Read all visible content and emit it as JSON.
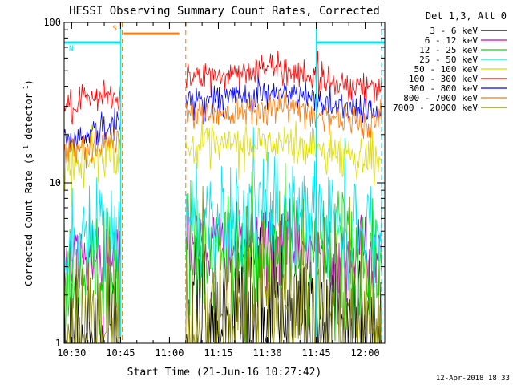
{
  "chart_data": {
    "type": "line",
    "title": "HESSI Observing Summary Count Rates, Corrected",
    "xlabel": "Start Time (21-Jun-16 10:27:42)",
    "ylabel_parts": [
      "Corrected Count Rate (s",
      "-1",
      " detector",
      "-1",
      ")"
    ],
    "y_scale": "log",
    "ylim": [
      1,
      100
    ],
    "xlim": [
      "10:27:42",
      "12:06:00"
    ],
    "x_tick_labels": [
      "10:30",
      "10:45",
      "11:00",
      "11:15",
      "11:30",
      "11:45",
      "12:00"
    ],
    "x_tick_minutes": [
      630,
      645,
      660,
      675,
      690,
      705,
      720
    ],
    "y_tick_labels": [
      "1",
      "10",
      "100"
    ],
    "y_tick_values": [
      1,
      10,
      100
    ],
    "legend_title": "Det 1,3, Att 0",
    "legend_position": "right",
    "data_gap": [
      "10:45",
      "11:05"
    ],
    "series": [
      {
        "name": "3 - 6 keV",
        "color": "#000000",
        "level_before": 1.0,
        "level_after": 1.4,
        "level_peak": 1.5,
        "noise": 0.35
      },
      {
        "name": "6 - 12 keV",
        "color": "#cc00cc",
        "level_before": 3.8,
        "level_after": 4.0,
        "level_peak": 4.2,
        "noise": 0.12
      },
      {
        "name": "12 - 25 keV",
        "color": "#00dd00",
        "level_before": 3.2,
        "level_after": 3.5,
        "level_peak": 3.7,
        "noise": 0.2
      },
      {
        "name": "25 - 50 keV",
        "color": "#00e5ee",
        "level_before": 5.2,
        "level_after": 6.0,
        "level_peak": 6.5,
        "noise": 0.18
      },
      {
        "name": "50 - 100 keV",
        "color": "#dddd00",
        "level_before": 16.0,
        "level_after": 16.5,
        "level_peak": 17.5,
        "noise": 0.07
      },
      {
        "name": "100 - 300 keV",
        "color": "#ff0000",
        "level_before": 36.0,
        "level_after": 45.0,
        "level_peak": 52.0,
        "noise": 0.05
      },
      {
        "name": "300 - 800 keV",
        "color": "#0000ff",
        "level_before": 23.0,
        "level_after": 33.0,
        "level_peak": 36.0,
        "noise": 0.05
      },
      {
        "name": "800 - 7000 keV",
        "color": "#ff7700",
        "level_before": 19.0,
        "level_after": 27.0,
        "level_peak": 30.0,
        "noise": 0.05
      },
      {
        "name": "7000 - 20000 keV",
        "color": "#888800",
        "level_before": 1.5,
        "level_after": 1.6,
        "level_peak": 1.7,
        "noise": 0.3
      }
    ],
    "flags": [
      {
        "label": "S",
        "color": "#ff7700",
        "start": "10:46",
        "end": "11:03",
        "level": 85
      },
      {
        "label": "N",
        "color": "#00e5ee",
        "start": "10:27:42",
        "end": "10:45",
        "level": 75
      },
      {
        "label": "",
        "color": "#00e5ee",
        "start": "11:45",
        "end": "12:06",
        "level": 75
      }
    ],
    "markers": [
      {
        "time": "10:45",
        "color": "#00e5ee",
        "style": "solid"
      },
      {
        "time": "10:45:30",
        "color": "#ff7700",
        "style": "dashed"
      },
      {
        "time": "11:05",
        "color": "#ff7700",
        "style": "dashed"
      },
      {
        "time": "11:45",
        "color": "#00e5ee",
        "style": "solid"
      },
      {
        "time": "12:05",
        "color": "#00e5ee",
        "style": "dashed"
      }
    ]
  },
  "footer_timestamp": "12-Apr-2018 18:33"
}
